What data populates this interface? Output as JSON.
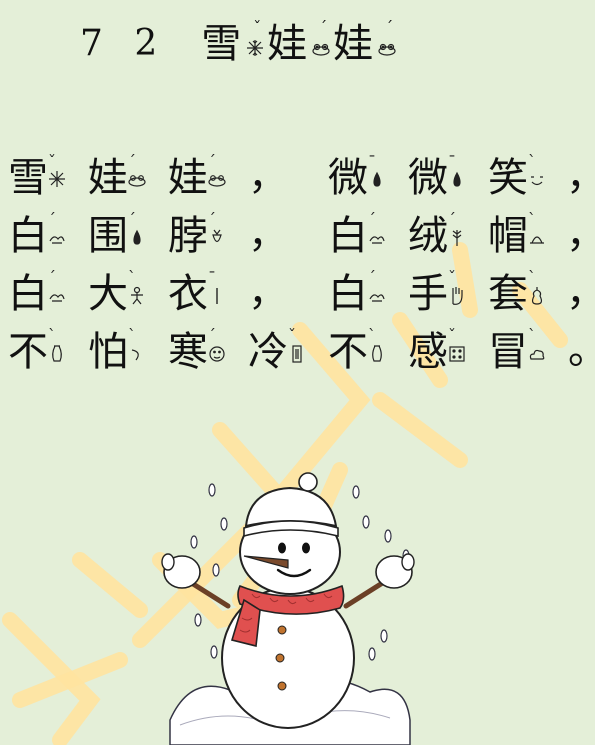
{
  "lesson": {
    "number": "7 2",
    "title": [
      {
        "char": "雪",
        "tone": "ˇ",
        "icon": "snowflake-icon"
      },
      {
        "char": "娃",
        "tone": "ˊ",
        "icon": "frog-icon"
      },
      {
        "char": "娃",
        "tone": "ˊ",
        "icon": "frog-icon"
      }
    ]
  },
  "poem": {
    "lines": [
      {
        "chars": [
          {
            "char": "雪",
            "tone": "ˇ",
            "icon": "snowflake-icon"
          },
          {
            "char": "娃",
            "tone": "ˊ",
            "icon": "frog-icon"
          },
          {
            "char": "娃",
            "tone": "ˊ",
            "icon": "frog-icon"
          }
        ],
        "punct1": "，",
        "chars2": [
          {
            "char": "微",
            "tone": "ˉ",
            "icon": "raindrop-icon"
          },
          {
            "char": "微",
            "tone": "ˉ",
            "icon": "raindrop-icon"
          },
          {
            "char": "笑",
            "tone": "ˋ",
            "icon": "smile-icon"
          }
        ],
        "punct2": "，"
      },
      {
        "chars": [
          {
            "char": "白",
            "tone": "ˊ",
            "icon": "bird-icon"
          },
          {
            "char": "围",
            "tone": "ˊ",
            "icon": "raindrop-icon"
          },
          {
            "char": "脖",
            "tone": "ˊ",
            "icon": "radish-icon"
          }
        ],
        "punct1": "，",
        "chars2": [
          {
            "char": "白",
            "tone": "ˊ",
            "icon": "bird-icon"
          },
          {
            "char": "绒",
            "tone": "ˊ",
            "icon": "wheat-icon"
          },
          {
            "char": "帽",
            "tone": "ˋ",
            "icon": "hat-icon"
          }
        ],
        "punct2": "，"
      },
      {
        "chars": [
          {
            "char": "白",
            "tone": "ˊ",
            "icon": "bird-icon"
          },
          {
            "char": "大",
            "tone": "ˋ",
            "icon": "person-icon"
          },
          {
            "char": "衣",
            "tone": "ˉ",
            "icon": "stick-icon"
          }
        ],
        "punct1": "，",
        "chars2": [
          {
            "char": "白",
            "tone": "ˊ",
            "icon": "bird-icon"
          },
          {
            "char": "手",
            "tone": "ˇ",
            "icon": "hand-icon"
          },
          {
            "char": "套",
            "tone": "ˋ",
            "icon": "pear-icon"
          }
        ],
        "punct2": "，"
      },
      {
        "chars": [
          {
            "char": "不",
            "tone": "ˋ",
            "icon": "vase-icon"
          },
          {
            "char": "怕",
            "tone": "ˋ",
            "icon": "curve-icon"
          },
          {
            "char": "寒",
            "tone": "ˊ",
            "icon": "face-icon"
          },
          {
            "char": "冷",
            "tone": "ˇ",
            "icon": "box-icon"
          },
          {
            "char": "不",
            "tone": "ˋ",
            "icon": "vase-icon"
          },
          {
            "char": "感",
            "tone": "ˇ",
            "icon": "dice-icon"
          },
          {
            "char": "冒",
            "tone": "ˋ",
            "icon": "cloud-icon"
          }
        ],
        "end": "。"
      }
    ]
  },
  "colors": {
    "background": "#e4efd8",
    "watermark": "#ffe3a0",
    "scarf": "#e0504f",
    "snowman_outline": "#222222",
    "nose": "#7a4a2c"
  },
  "illustration": {
    "icon": "snowman-icon"
  }
}
